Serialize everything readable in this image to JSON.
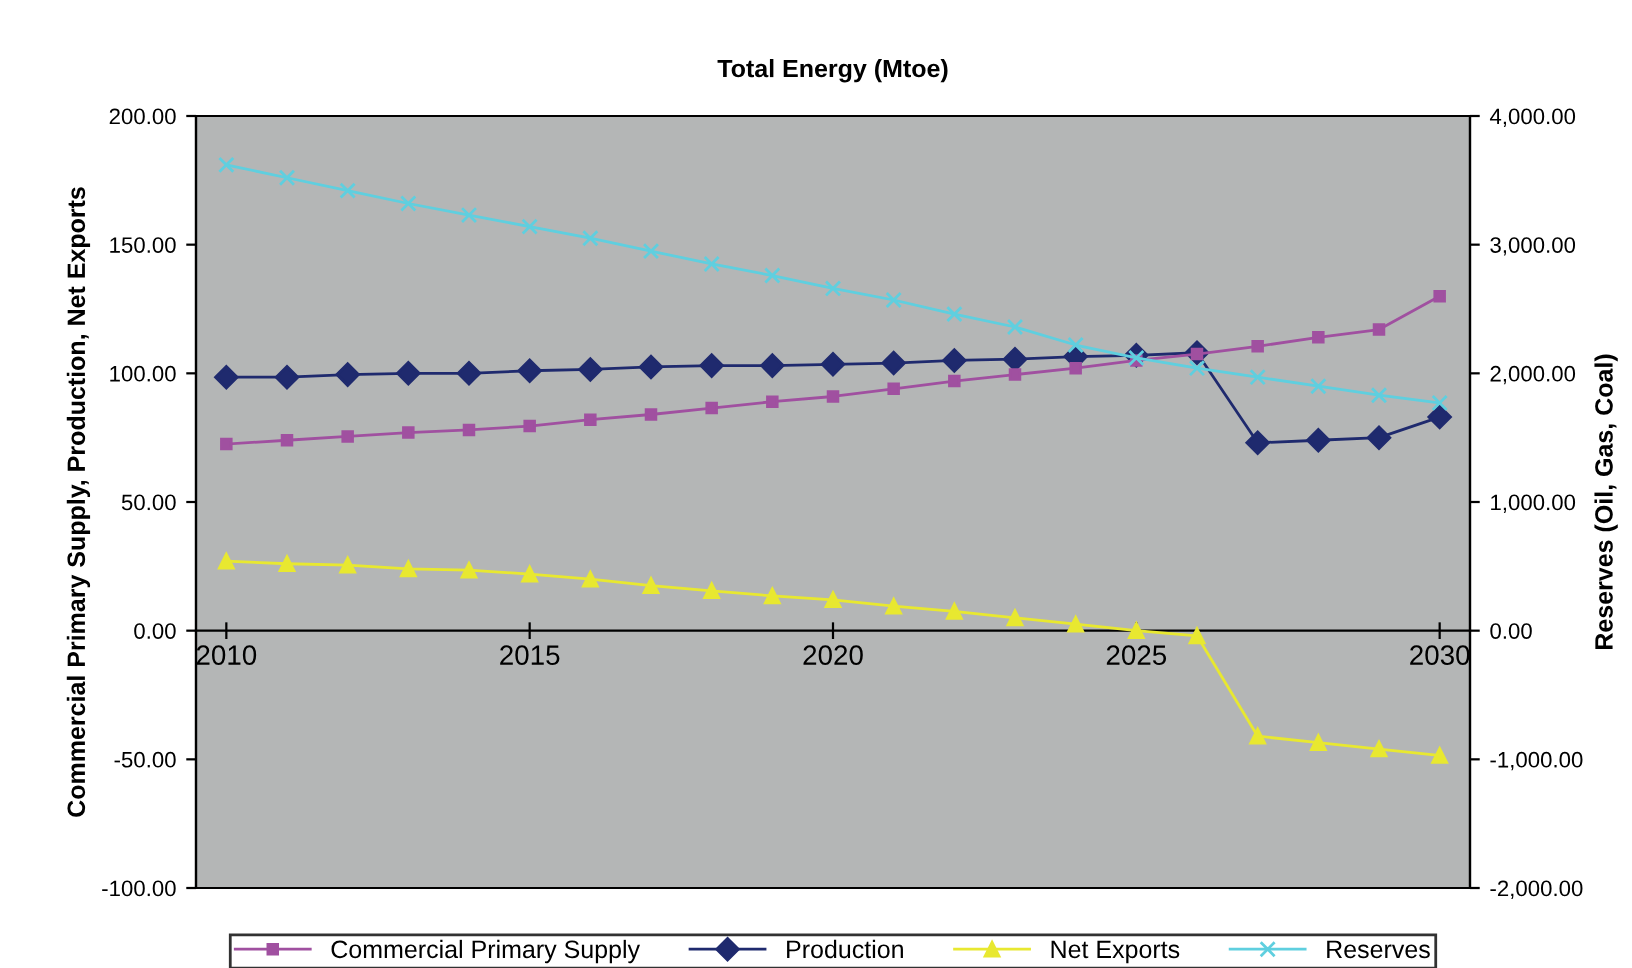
{
  "chart_data": {
    "type": "line",
    "title": "Total Energy (Mtoe)",
    "ylabel": "Commercial Primary Supply, Production, Net Exports",
    "y2label": "Reserves (Oil, Gas, Coal)",
    "x": [
      2010,
      2011,
      2012,
      2013,
      2014,
      2015,
      2016,
      2017,
      2018,
      2019,
      2020,
      2021,
      2022,
      2023,
      2024,
      2025,
      2026,
      2027,
      2028,
      2029,
      2030
    ],
    "xlim": [
      2009.5,
      2030.5
    ],
    "xticks": [
      2010,
      2015,
      2020,
      2025,
      2030
    ],
    "ylim": [
      -100,
      200
    ],
    "yticks": [
      {
        "value": -100,
        "label": "-100.00"
      },
      {
        "value": -50,
        "label": "-50.00"
      },
      {
        "value": 0,
        "label": "0.00"
      },
      {
        "value": 50,
        "label": "50.00"
      },
      {
        "value": 100,
        "label": "100.00"
      },
      {
        "value": 150,
        "label": "150.00"
      },
      {
        "value": 200,
        "label": "200.00"
      }
    ],
    "y2lim": [
      -2000,
      4000
    ],
    "y2ticks": [
      {
        "value": -2000,
        "label": "-2,000.00"
      },
      {
        "value": -1000,
        "label": "-1,000.00"
      },
      {
        "value": 0,
        "label": "0.00"
      },
      {
        "value": 1000,
        "label": "1,000.00"
      },
      {
        "value": 2000,
        "label": "2,000.00"
      },
      {
        "value": 3000,
        "label": "3,000.00"
      },
      {
        "value": 4000,
        "label": "4,000.00"
      }
    ],
    "grid": false,
    "legend": "bottom",
    "series": [
      {
        "name": "Commercial Primary Supply",
        "color": "#a050a0",
        "marker": "square",
        "values": [
          72.5,
          74,
          75.5,
          77,
          78,
          79.5,
          82,
          84,
          86.5,
          89,
          91,
          94,
          97,
          99.5,
          102,
          105,
          107.5,
          110.5,
          114,
          117,
          130
        ]
      },
      {
        "name": "Production",
        "color": "#1f2a6e",
        "marker": "diamond",
        "values": [
          98.5,
          98.5,
          99.5,
          100,
          100,
          101,
          101.5,
          102.5,
          103,
          103,
          103.5,
          104,
          105,
          105.5,
          106.5,
          107,
          108,
          73,
          74,
          75,
          83
        ]
      },
      {
        "name": "Net Exports",
        "color": "#e8e830",
        "marker": "triangle",
        "values": [
          27,
          26,
          25.5,
          24,
          23.5,
          22,
          20,
          17.5,
          15.5,
          13.5,
          12,
          9.5,
          7.5,
          5,
          2.5,
          0,
          -2,
          -41,
          -43.5,
          -46,
          -48.5
        ]
      },
      {
        "name": "Reserves",
        "color": "#5fcfdf",
        "marker": "cross",
        "axis": "y2",
        "values": [
          3620,
          3520,
          3420,
          3320,
          3230,
          3140,
          3050,
          2950,
          2850,
          2760,
          2660,
          2570,
          2460,
          2360,
          2220,
          2120,
          2040,
          1970,
          1900,
          1830,
          1770
        ]
      }
    ]
  }
}
